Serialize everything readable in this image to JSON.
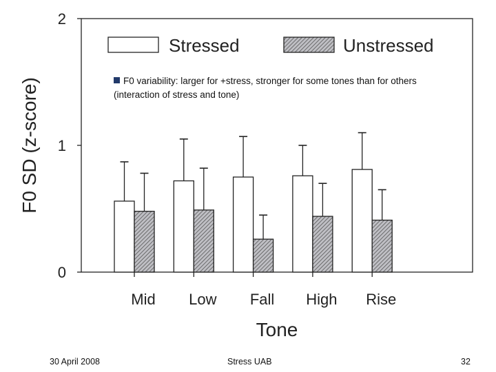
{
  "chart_data": {
    "type": "bar",
    "xlabel": "Tone",
    "ylabel": "F0 SD (z-score)",
    "ylim": [
      0,
      2
    ],
    "yticks": [
      "0",
      "1",
      "2"
    ],
    "categories": [
      "Mid",
      "Low",
      "Fall",
      "High",
      "Rise"
    ],
    "series": [
      {
        "name": "Stressed",
        "values": [
          0.56,
          0.72,
          0.75,
          0.76,
          0.81
        ],
        "error_upper": [
          0.87,
          1.05,
          1.07,
          1.0,
          1.1
        ],
        "fill": "white"
      },
      {
        "name": "Unstressed",
        "values": [
          0.48,
          0.49,
          0.26,
          0.44,
          0.41
        ],
        "error_upper": [
          0.78,
          0.82,
          0.45,
          0.7,
          0.65
        ],
        "fill": "hatched-gray"
      }
    ],
    "legend": "top",
    "grid": false
  },
  "note": "F0 variability: larger for +stress, stronger for some tones than for others (interaction of stress and tone)",
  "footer": {
    "date": "30 April 2008",
    "title": "Stress UAB",
    "page": "32"
  }
}
